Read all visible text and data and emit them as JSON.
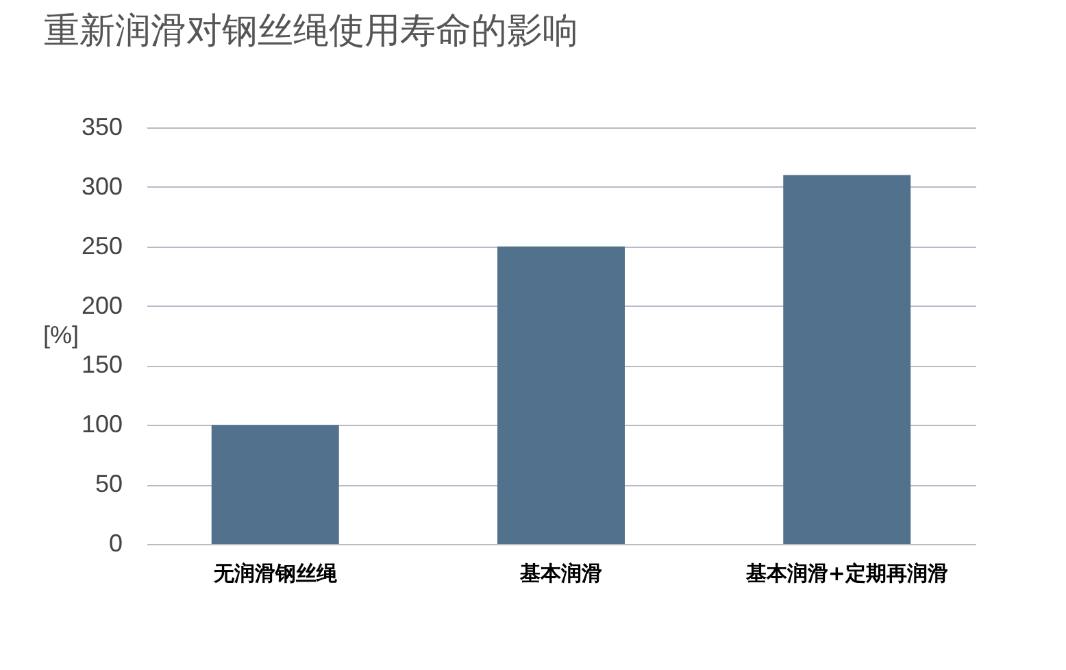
{
  "chart_data": {
    "type": "bar",
    "title": "重新润滑对钢丝绳使用寿命的影响",
    "ylabel": "[%]",
    "categories": [
      "无润滑钢丝绳",
      "基本润滑",
      "基本润滑+定期再润滑"
    ],
    "values": [
      100,
      250,
      310
    ],
    "color": "#52718c",
    "ylim": [
      0,
      350
    ],
    "yticks": [
      0,
      50,
      100,
      150,
      200,
      250,
      300,
      350
    ],
    "grid": "y"
  }
}
